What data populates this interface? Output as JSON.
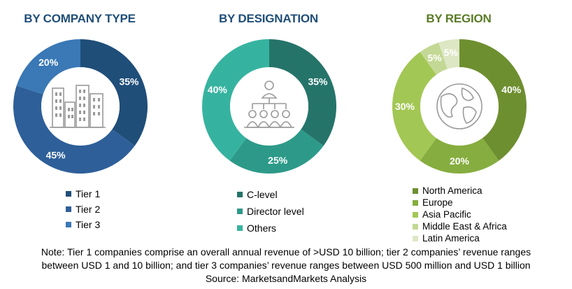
{
  "chart_data": [
    {
      "type": "pie",
      "title": "BY COMPANY TYPE",
      "title_color": "#1f4e79",
      "categories": [
        "Tier 1",
        "Tier 2",
        "Tier 3"
      ],
      "values": [
        35,
        45,
        20
      ],
      "slice_labels": [
        "35%",
        "45%",
        "20%"
      ],
      "colors": [
        "#1f4e79",
        "#2e5f99",
        "#3a78b6"
      ],
      "center_icon": "buildings-icon",
      "legend": [
        "Tier 1",
        "Tier 2",
        "Tier 3"
      ],
      "legend_placement": "bottom"
    },
    {
      "type": "pie",
      "title": "BY DESIGNATION",
      "title_color": "#1f4e79",
      "categories": [
        "C-level",
        "Director level",
        "Others"
      ],
      "values": [
        35,
        25,
        40
      ],
      "slice_labels": [
        "35%",
        "25%",
        "40%"
      ],
      "colors": [
        "#25746a",
        "#2d9a89",
        "#36b3a0"
      ],
      "center_icon": "org-chart-icon",
      "legend": [
        "C-level",
        "Director level",
        "Others"
      ],
      "legend_placement": "bottom"
    },
    {
      "type": "pie",
      "title": "BY REGION",
      "title_color": "#5a7b26",
      "categories": [
        "North America",
        "Europe",
        "Asia Pacific",
        "Middle East & Africa",
        "Latin America"
      ],
      "values": [
        40,
        20,
        30,
        5,
        5
      ],
      "slice_labels": [
        "40%",
        "20%",
        "30%",
        "5%",
        "5%"
      ],
      "colors": [
        "#6e8f30",
        "#86ad3f",
        "#a3c754",
        "#c3d894",
        "#dde7c4"
      ],
      "center_icon": "globe-icon",
      "legend": [
        "North America",
        "Europe",
        "Asia Pacific",
        "Middle East & Africa",
        "Latin America"
      ],
      "legend_placement": "bottom"
    }
  ],
  "footer": {
    "note_line1": "Note: Tier 1 companies comprise an overall annual revenue of >USD 10 billion; tier 2 companies’ revenue ranges",
    "note_line2": "between USD 1 and 10 billion; and tier 3 companies’ revenue ranges between USD 500 million and USD 1 billion",
    "source": "Source: MarketsandMarkets Analysis"
  }
}
